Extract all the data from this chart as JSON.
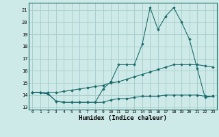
{
  "xlabel": "Humidex (Indice chaleur)",
  "bg_color": "#ceeae8",
  "grid_color": "#aacfcd",
  "line_color": "#1a6b6b",
  "xlim": [
    -0.5,
    23.5
  ],
  "ylim": [
    12.8,
    21.6
  ],
  "yticks": [
    13,
    14,
    15,
    16,
    17,
    18,
    19,
    20,
    21
  ],
  "xticks": [
    0,
    1,
    2,
    3,
    4,
    5,
    6,
    7,
    8,
    9,
    10,
    11,
    12,
    13,
    14,
    15,
    16,
    17,
    18,
    19,
    20,
    21,
    22,
    23
  ],
  "line1_x": [
    0,
    1,
    2,
    3,
    4,
    5,
    6,
    7,
    8,
    9,
    10,
    11,
    12,
    13,
    14,
    15,
    16,
    17,
    18,
    19,
    20,
    21,
    22,
    23
  ],
  "line1_y": [
    14.2,
    14.2,
    14.1,
    13.5,
    13.4,
    13.4,
    13.4,
    13.4,
    13.4,
    14.5,
    15.1,
    16.5,
    16.5,
    16.5,
    18.2,
    21.2,
    19.4,
    20.5,
    21.2,
    20.0,
    18.6,
    16.2,
    13.8,
    13.9
  ],
  "line2_x": [
    0,
    1,
    2,
    3,
    4,
    5,
    6,
    7,
    8,
    9,
    10,
    11,
    12,
    13,
    14,
    15,
    16,
    17,
    18,
    19,
    20,
    21,
    22,
    23
  ],
  "line2_y": [
    14.2,
    14.2,
    14.2,
    14.2,
    14.3,
    14.4,
    14.5,
    14.6,
    14.7,
    14.8,
    15.0,
    15.1,
    15.3,
    15.5,
    15.7,
    15.9,
    16.1,
    16.3,
    16.5,
    16.5,
    16.5,
    16.5,
    16.4,
    16.3
  ],
  "line3_x": [
    0,
    1,
    2,
    3,
    4,
    5,
    6,
    7,
    8,
    9,
    10,
    11,
    12,
    13,
    14,
    15,
    16,
    17,
    18,
    19,
    20,
    21,
    22,
    23
  ],
  "line3_y": [
    14.2,
    14.2,
    14.1,
    13.5,
    13.4,
    13.4,
    13.4,
    13.4,
    13.4,
    13.4,
    13.6,
    13.7,
    13.7,
    13.8,
    13.9,
    13.9,
    13.9,
    14.0,
    14.0,
    14.0,
    14.0,
    14.0,
    13.9,
    13.9
  ]
}
